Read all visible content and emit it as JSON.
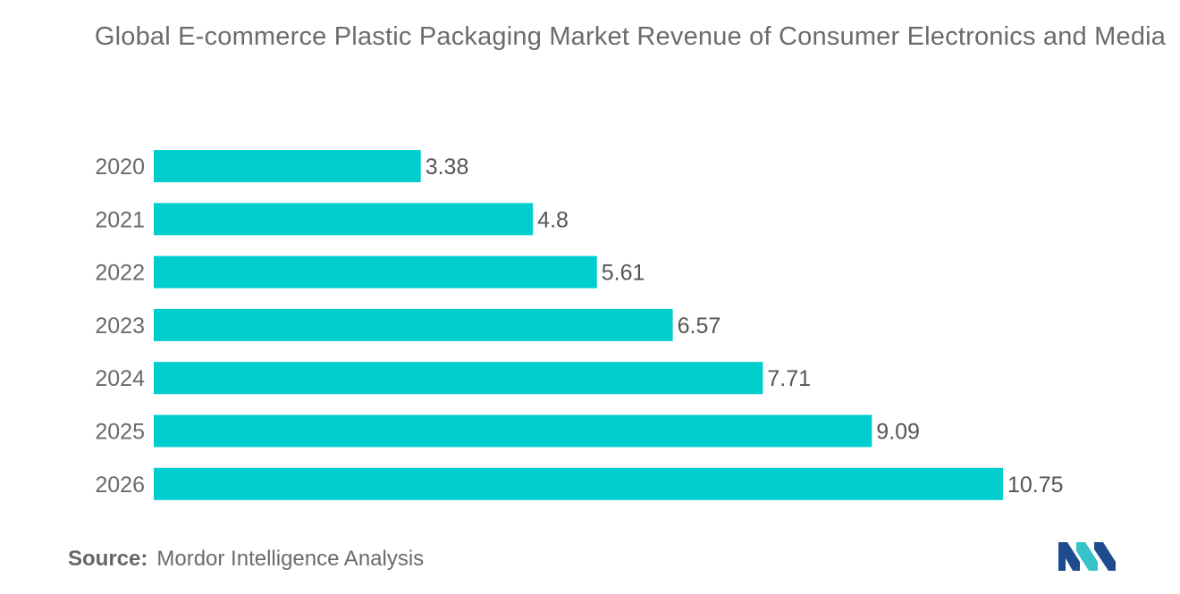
{
  "colors": {
    "bar": "#00cdcd",
    "text": "#6b6b6b",
    "logo_dark": "#1e4b8e",
    "logo_light": "#35c3c8"
  },
  "logo_icon": "mordor-intelligence-logo-icon",
  "source": {
    "label": "Source:",
    "text": "Mordor Intelligence Analysis"
  },
  "chart_data": {
    "type": "bar",
    "orientation": "horizontal",
    "title": "Global E-commerce Plastic Packaging Market Revenue of Consumer Electronics and Media",
    "xlabel": "",
    "ylabel": "",
    "categories": [
      "2020",
      "2021",
      "2022",
      "2023",
      "2024",
      "2025",
      "2026"
    ],
    "values": [
      3.38,
      4.8,
      5.61,
      6.57,
      7.71,
      9.09,
      10.75
    ],
    "value_labels": [
      "3.38",
      "4.8",
      "5.61",
      "6.57",
      "7.71",
      "9.09",
      "10.75"
    ],
    "xlim": [
      0,
      10.75
    ],
    "grid": false,
    "legend": "none"
  }
}
